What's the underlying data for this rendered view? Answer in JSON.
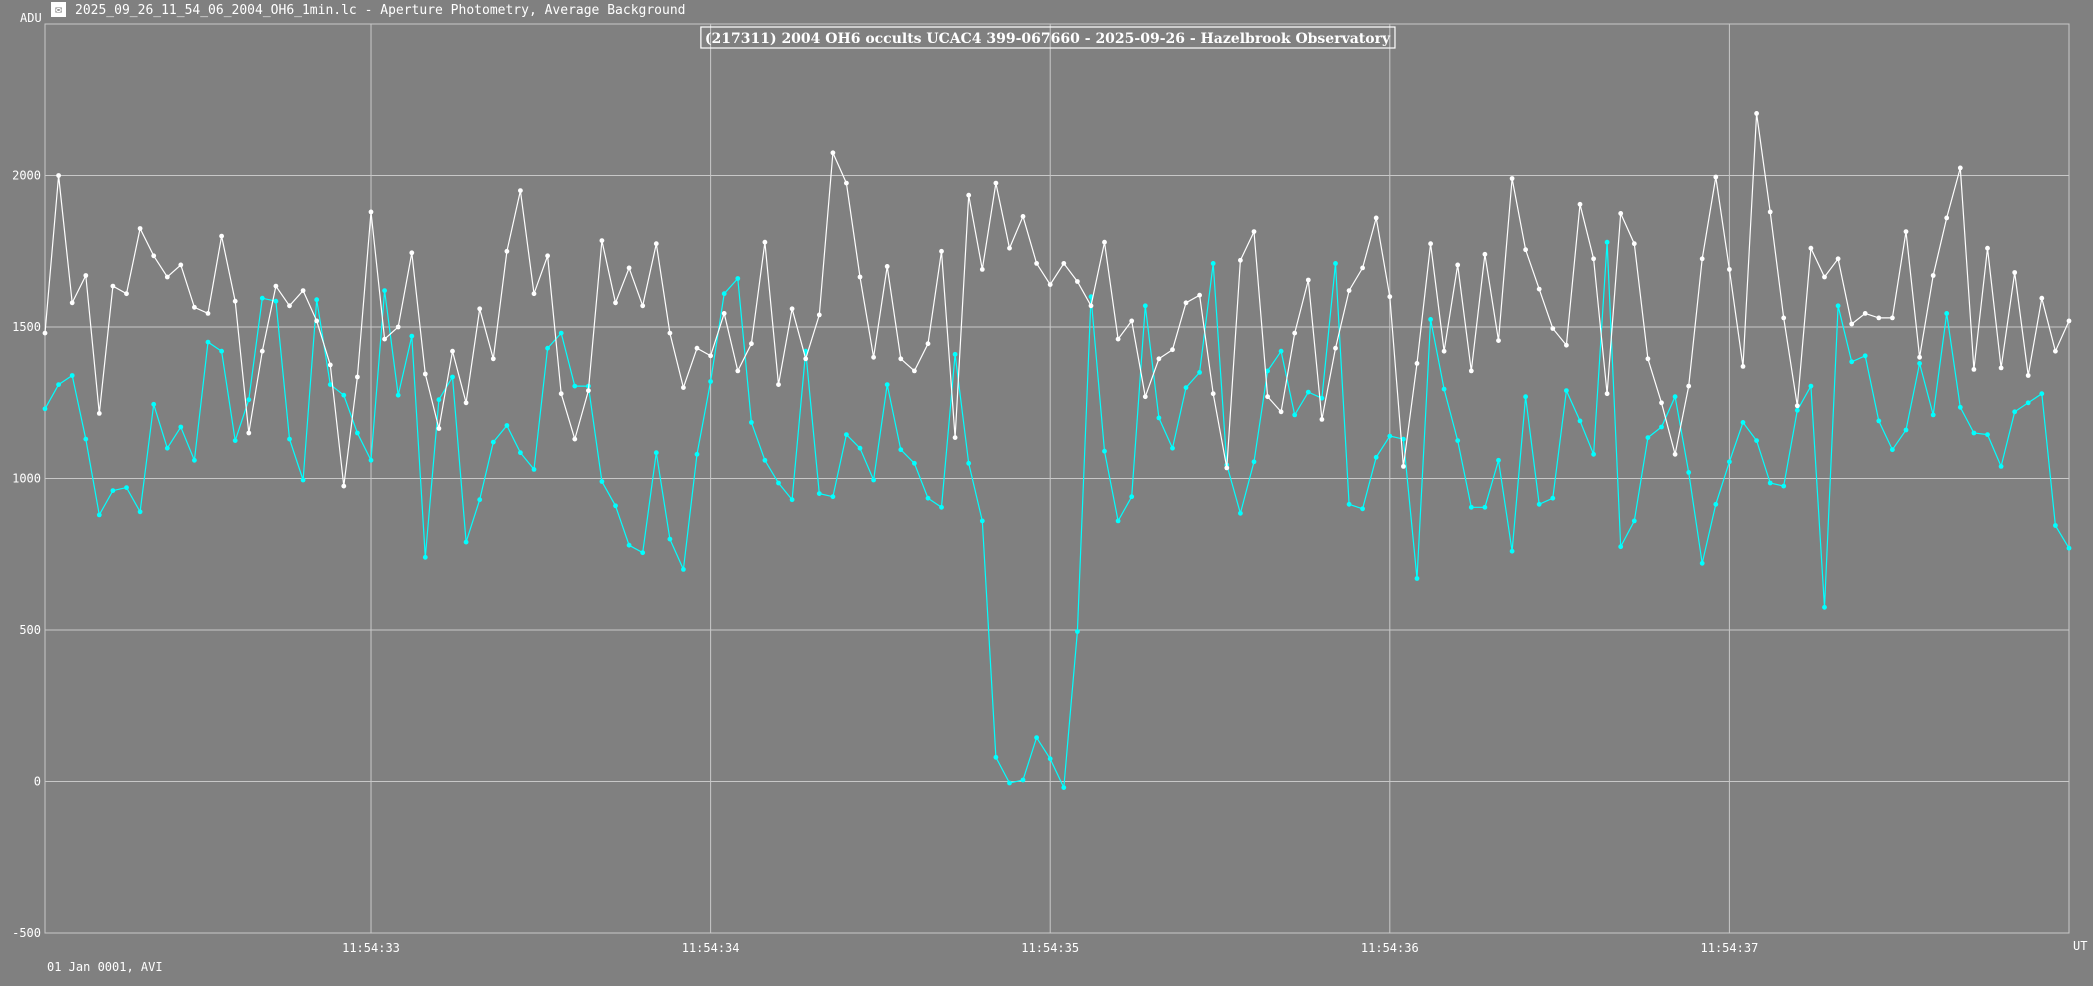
{
  "window": {
    "icon": "app-icon",
    "title": "2025_09_26_11_54_06_2004_OH6_1min.lc - Aperture Photometry, Average Background"
  },
  "footer": {
    "label": "01 Jan 0001, AVI"
  },
  "colors": {
    "background": "#808080",
    "grid": "#c8c8c8",
    "target_series": "#00ffff",
    "comparison_series": "#ffffff"
  },
  "chart_data": {
    "type": "line",
    "title": "(217311) 2004 OH6 occults UCAC4 399-067660 - 2025-09-26 - Hazelbrook Observatory",
    "ylabel": "ADU",
    "xlabel": "UT",
    "ylim": [
      -500,
      2500
    ],
    "yticks": [
      -500,
      0,
      500,
      1000,
      1500,
      2000
    ],
    "x_tick_labels": [
      "11:54:33",
      "11:54:34",
      "11:54:35",
      "11:54:36",
      "11:54:37"
    ],
    "x_tick_values": [
      33,
      34,
      35,
      36,
      37
    ],
    "xlim": [
      32.04,
      38.0
    ],
    "sample_interval_s": 0.04,
    "grid": true,
    "series": [
      {
        "color": "#00ffff",
        "values": [
          1230,
          1310,
          1340,
          1130,
          880,
          960,
          970,
          890,
          1245,
          1100,
          1170,
          1060,
          1450,
          1420,
          1125,
          1260,
          1595,
          1585,
          1130,
          995,
          1590,
          1310,
          1275,
          1150,
          1060,
          1620,
          1275,
          1470,
          740,
          1260,
          1335,
          790,
          930,
          1120,
          1175,
          1085,
          1030,
          1430,
          1480,
          1305,
          1305,
          990,
          910,
          780,
          755,
          1085,
          800,
          700,
          1080,
          1320,
          1610,
          1660,
          1185,
          1060,
          985,
          930,
          1420,
          950,
          940,
          1145,
          1100,
          995,
          1310,
          1095,
          1050,
          935,
          905,
          1410,
          1050,
          860,
          80,
          -5,
          5,
          145,
          75,
          -20,
          495,
          1600,
          1090,
          860,
          940,
          1570,
          1200,
          1100,
          1300,
          1350,
          1710,
          1045,
          885,
          1055,
          1355,
          1420,
          1210,
          1285,
          1265,
          1710,
          915,
          900,
          1070,
          1140,
          1130,
          670,
          1525,
          1295,
          1125,
          905,
          905,
          1060,
          760,
          1270,
          915,
          935,
          1290,
          1190,
          1080,
          1780,
          775,
          860,
          1135,
          1170,
          1270,
          1020,
          720,
          915,
          1055,
          1185,
          1125,
          985,
          975,
          1225,
          1305,
          575,
          1570,
          1385,
          1405,
          1190,
          1095,
          1160,
          1380,
          1210,
          1545,
          1235,
          1150,
          1145,
          1040,
          1220,
          1250,
          1280,
          845,
          770
        ]
      },
      {
        "color": "#ffffff",
        "values": [
          1480,
          2000,
          1580,
          1670,
          1215,
          1635,
          1610,
          1825,
          1735,
          1665,
          1705,
          1565,
          1545,
          1800,
          1585,
          1150,
          1420,
          1635,
          1570,
          1620,
          1520,
          1375,
          975,
          1335,
          1880,
          1460,
          1500,
          1745,
          1345,
          1165,
          1420,
          1250,
          1560,
          1395,
          1750,
          1950,
          1610,
          1735,
          1280,
          1130,
          1290,
          1785,
          1580,
          1695,
          1570,
          1775,
          1480,
          1300,
          1430,
          1405,
          1545,
          1355,
          1445,
          1780,
          1310,
          1560,
          1395,
          1540,
          2075,
          1975,
          1665,
          1400,
          1700,
          1395,
          1355,
          1445,
          1750,
          1135,
          1935,
          1690,
          1975,
          1760,
          1865,
          1710,
          1640,
          1710,
          1650,
          1570,
          1780,
          1460,
          1520,
          1270,
          1395,
          1425,
          1580,
          1605,
          1280,
          1035,
          1720,
          1815,
          1270,
          1220,
          1480,
          1655,
          1195,
          1430,
          1620,
          1695,
          1860,
          1600,
          1040,
          1380,
          1775,
          1420,
          1705,
          1355,
          1740,
          1455,
          1990,
          1755,
          1625,
          1495,
          1440,
          1905,
          1725,
          1280,
          1875,
          1775,
          1395,
          1250,
          1080,
          1305,
          1725,
          1995,
          1690,
          1370,
          2205,
          1880,
          1530,
          1240,
          1760,
          1665,
          1725,
          1510,
          1545,
          1530,
          1530,
          1815,
          1400,
          1670,
          1860,
          2025,
          1360,
          1760,
          1365,
          1680,
          1340,
          1595,
          1420,
          1520
        ]
      }
    ]
  }
}
